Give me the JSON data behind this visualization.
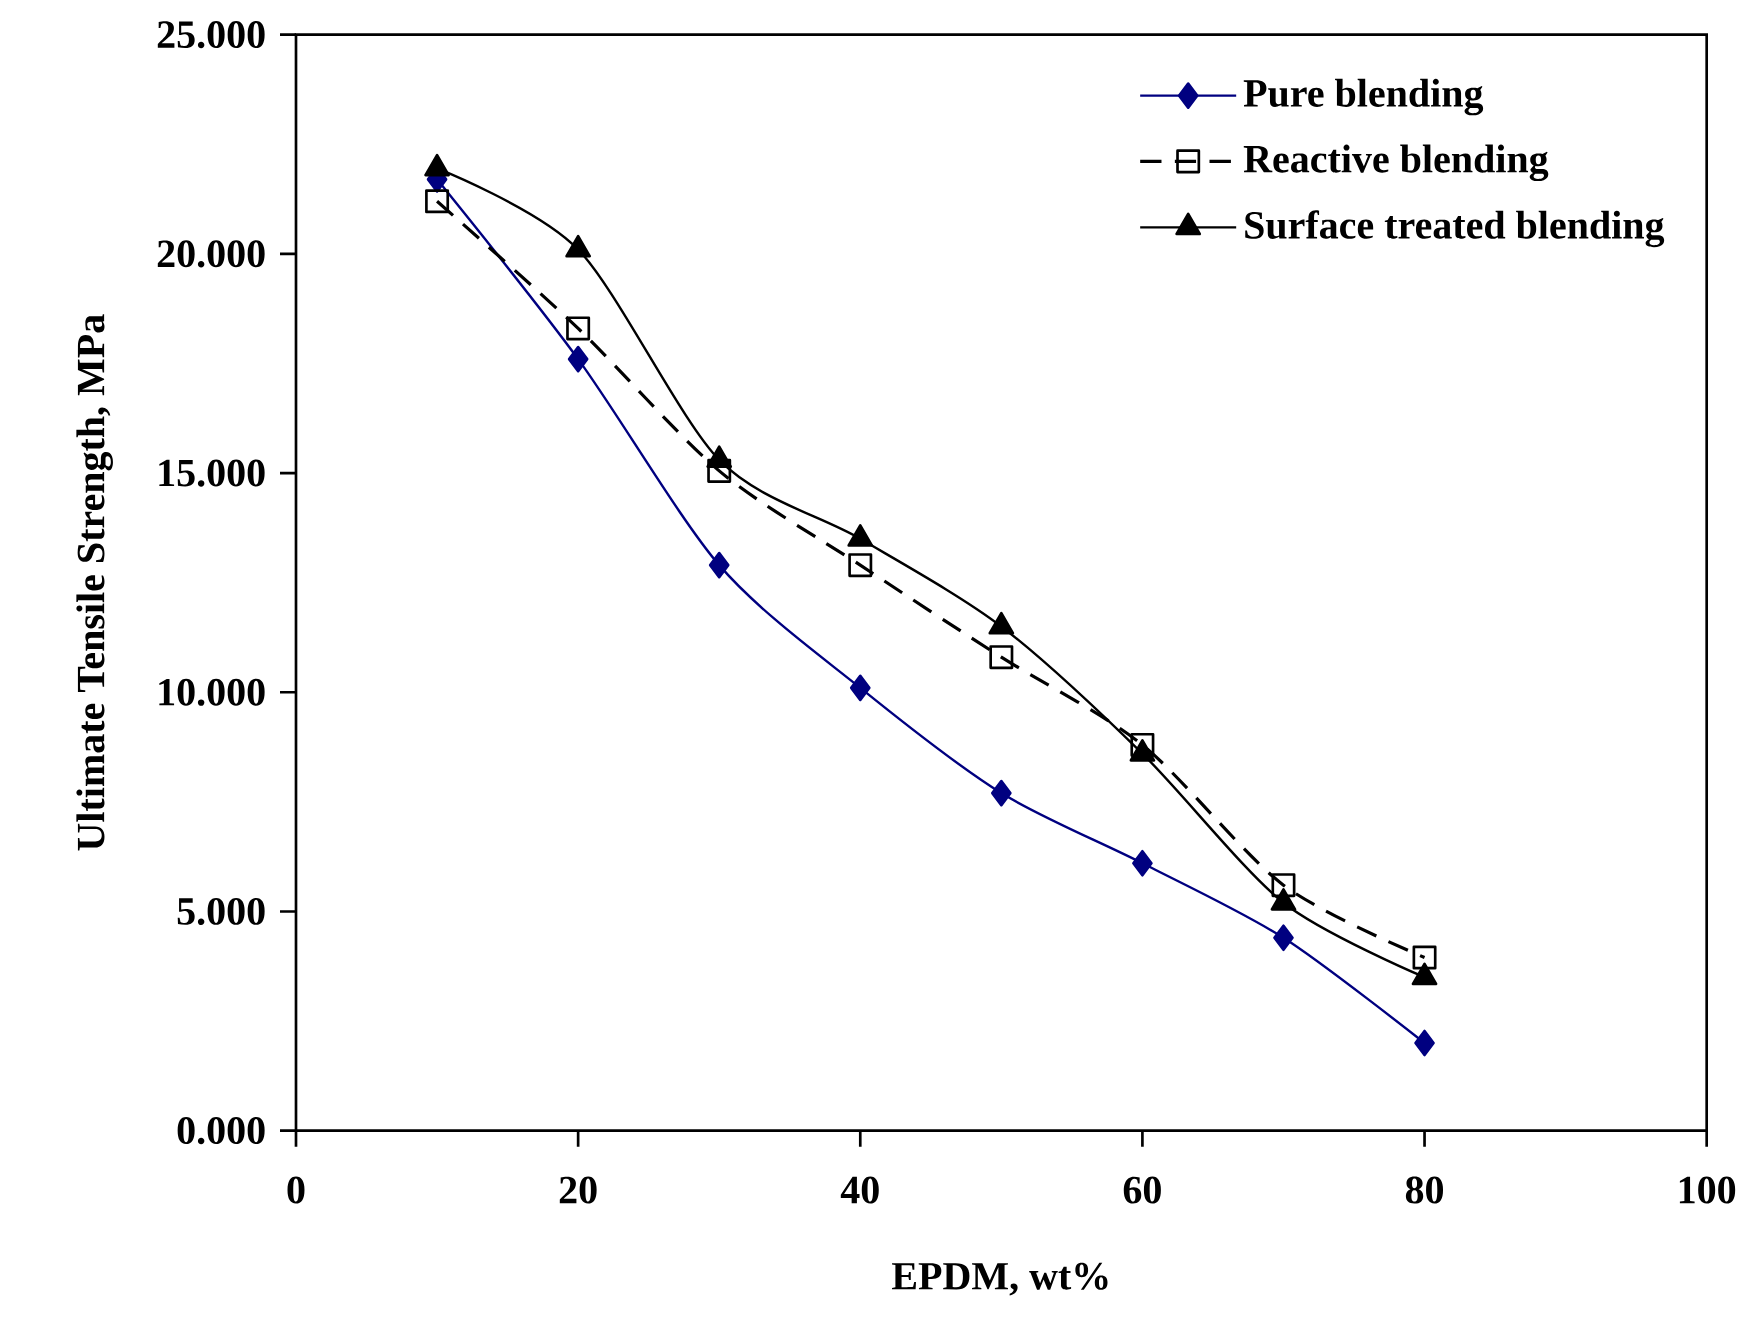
{
  "chart_data": {
    "type": "line",
    "xlabel": "EPDM, wt%",
    "ylabel": "Ultimate Tensile Strength, MPa",
    "x": [
      10,
      20,
      30,
      40,
      50,
      60,
      70,
      80
    ],
    "series": [
      {
        "name": "Pure blending",
        "color": "#000080",
        "marker": "diamond",
        "line_style": "solid",
        "values": [
          21.7,
          17.6,
          12.9,
          10.1,
          7.7,
          6.1,
          4.4,
          2.0
        ]
      },
      {
        "name": "Reactive blending",
        "color": "#000000",
        "marker": "square",
        "line_style": "dashed",
        "values": [
          21.2,
          18.3,
          15.05,
          12.9,
          10.8,
          8.8,
          5.6,
          3.95
        ]
      },
      {
        "name": "Surface treated blending",
        "color": "#000000",
        "marker": "triangle",
        "line_style": "solid",
        "values": [
          21.95,
          20.1,
          15.3,
          13.5,
          11.5,
          8.6,
          5.2,
          3.5
        ]
      }
    ],
    "xlim": [
      0,
      100
    ],
    "xticks": [
      0,
      20,
      40,
      60,
      80,
      100
    ],
    "ylim": [
      0,
      25
    ],
    "yticks": [
      {
        "value": 0,
        "label": "0.000"
      },
      {
        "value": 5,
        "label": "5.000"
      },
      {
        "value": 10,
        "label": "10.000"
      },
      {
        "value": 15,
        "label": "15.000"
      },
      {
        "value": 20,
        "label": "20.000"
      },
      {
        "value": 25,
        "label": "25.000"
      }
    ],
    "legend": "top right",
    "grid": false
  }
}
